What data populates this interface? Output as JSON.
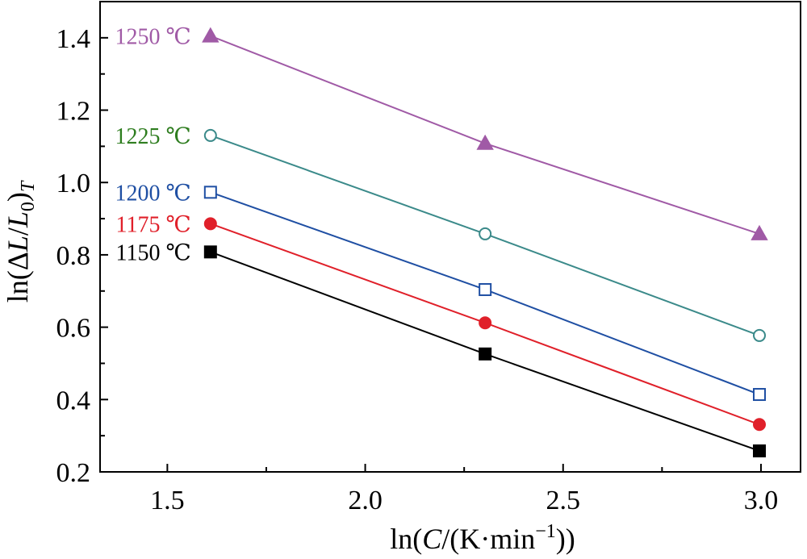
{
  "chart_data": {
    "type": "line",
    "xlabel": "ln(C/(K·min⁻¹))",
    "ylabel": "ln(ΔL/L₀)T",
    "xlim": [
      1.33,
      3.1
    ],
    "ylim": [
      0.2,
      1.5
    ],
    "xticks": [
      "1.5",
      "2.0",
      "2.5",
      "3.0"
    ],
    "yticks": [
      "0.2",
      "0.4",
      "0.6",
      "0.8",
      "1.0",
      "1.2",
      "1.4"
    ],
    "grid": false,
    "legend": "inline labels at left of each series",
    "x": [
      1.609,
      2.303,
      2.996
    ],
    "series": [
      {
        "name": "1250 ℃",
        "values": [
          1.405,
          1.108,
          0.858
        ],
        "color": "#a05aa6",
        "marker": "triangle",
        "filled": true
      },
      {
        "name": "1225 ℃",
        "values": [
          1.13,
          0.858,
          0.577
        ],
        "color": "#3b8a8a",
        "marker": "circle",
        "filled": false
      },
      {
        "name": "1200 ℃",
        "values": [
          0.973,
          0.704,
          0.414
        ],
        "color": "#1f4fa3",
        "marker": "square",
        "filled": false
      },
      {
        "name": "1175 ℃",
        "values": [
          0.886,
          0.612,
          0.331
        ],
        "color": "#e0202a",
        "marker": "circle",
        "filled": true
      },
      {
        "name": "1150 ℃",
        "values": [
          0.808,
          0.526,
          0.258
        ],
        "color": "#000000",
        "marker": "square",
        "filled": true
      }
    ],
    "label_colors": {
      "1250 ℃": "#a05aa6",
      "1225 ℃": "#2e7d1f",
      "1200 ℃": "#1f4fa3",
      "1175 ℃": "#e0202a",
      "1150 ℃": "#000000"
    }
  }
}
